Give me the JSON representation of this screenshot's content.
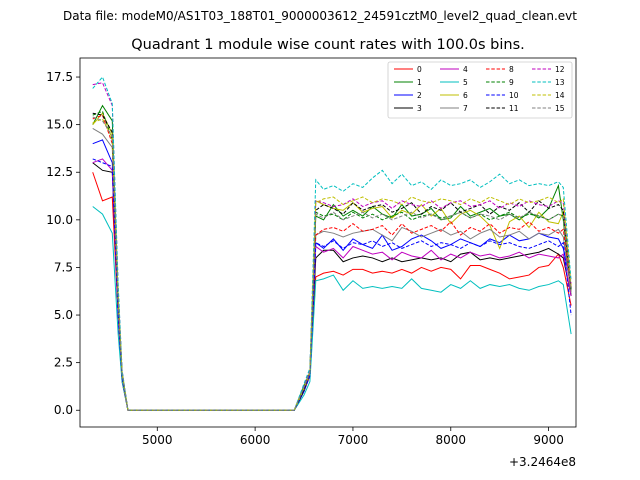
{
  "figure": {
    "suptitle": "Data file: modeM0/AS1T03_188T01_9000003612_24591cztM0_level2_quad_clean.evt"
  },
  "chart_data": {
    "type": "line",
    "title": "Quadrant 1 module wise count rates with 100.0s bins.",
    "xlabel": "",
    "ylabel": "",
    "x_offset_label": "+3.2464e8",
    "xlim": [
      4210,
      9280
    ],
    "ylim": [
      -0.88,
      18.5
    ],
    "xticks": [
      5000,
      6000,
      7000,
      8000,
      9000
    ],
    "xtick_labels": [
      "5000",
      "6000",
      "7000",
      "8000",
      "9000"
    ],
    "yticks": [
      0,
      2.5,
      5,
      7.5,
      10,
      12.5,
      15,
      17.5
    ],
    "ytick_labels": [
      "0.0",
      "2.5",
      "5.0",
      "7.5",
      "10.0",
      "12.5",
      "15.0",
      "17.5"
    ],
    "grid": false,
    "legend": {
      "position": "top-right",
      "columns": 4
    },
    "x": [
      4340,
      4440,
      4540,
      4600,
      4640,
      4700,
      4800,
      4900,
      5000,
      5100,
      5200,
      5300,
      5400,
      5500,
      5600,
      5700,
      5800,
      5900,
      6000,
      6100,
      6200,
      6300,
      6400,
      6500,
      6560,
      6620,
      6700,
      6800,
      6900,
      7000,
      7100,
      7200,
      7300,
      7400,
      7500,
      7600,
      7700,
      7800,
      7900,
      8000,
      8100,
      8200,
      8300,
      8400,
      8500,
      8600,
      8700,
      8800,
      8900,
      9000,
      9100,
      9150,
      9230
    ],
    "series": [
      {
        "name": "0",
        "color": "#ff0000",
        "dash": "solid",
        "values": [
          12.5,
          11.0,
          11.2,
          5.0,
          1.5,
          0,
          0,
          0,
          0,
          0,
          0,
          0,
          0,
          0,
          0,
          0,
          0,
          0,
          0,
          0,
          0,
          0,
          0,
          1.0,
          1.8,
          7.0,
          7.2,
          7.3,
          7.1,
          7.4,
          7.4,
          7.2,
          7.3,
          7.2,
          7.4,
          7.2,
          7.5,
          7.3,
          7.5,
          7.4,
          6.9,
          7.6,
          7.6,
          7.4,
          7.2,
          6.9,
          7.0,
          7.1,
          7.5,
          7.6,
          8.2,
          7.5,
          5.5
        ]
      },
      {
        "name": "1",
        "color": "#008000",
        "dash": "solid",
        "values": [
          15.0,
          16.0,
          15.2,
          6.0,
          2.0,
          0,
          0,
          0,
          0,
          0,
          0,
          0,
          0,
          0,
          0,
          0,
          0,
          0,
          0,
          0,
          0,
          0,
          0,
          1.3,
          2.0,
          10.2,
          10.0,
          10.8,
          10.2,
          10.5,
          10.2,
          10.7,
          10.3,
          10.1,
          10.8,
          10.2,
          10.3,
          10.6,
          10.0,
          10.1,
          10.7,
          10.2,
          10.4,
          10.6,
          10.2,
          10.3,
          10.0,
          10.4,
          10.1,
          10.6,
          11.8,
          10.0,
          6.0
        ]
      },
      {
        "name": "2",
        "color": "#0000ff",
        "dash": "solid",
        "values": [
          14.0,
          14.2,
          13.0,
          5.5,
          1.8,
          0,
          0,
          0,
          0,
          0,
          0,
          0,
          0,
          0,
          0,
          0,
          0,
          0,
          0,
          0,
          0,
          0,
          0,
          1.0,
          2.0,
          8.8,
          8.5,
          9.0,
          8.4,
          9.0,
          8.7,
          8.5,
          9.2,
          8.4,
          8.6,
          9.0,
          9.2,
          8.9,
          8.5,
          8.7,
          9.0,
          8.8,
          8.6,
          9.0,
          8.8,
          9.2,
          8.9,
          9.0,
          9.3,
          9.1,
          9.0,
          8.5,
          6.5
        ]
      },
      {
        "name": "3",
        "color": "#000000",
        "dash": "solid",
        "values": [
          13.0,
          12.6,
          12.5,
          5.0,
          1.7,
          0,
          0,
          0,
          0,
          0,
          0,
          0,
          0,
          0,
          0,
          0,
          0,
          0,
          0,
          0,
          0,
          0,
          0,
          1.0,
          1.9,
          8.0,
          8.4,
          8.4,
          7.8,
          8.0,
          8.1,
          8.0,
          7.8,
          8.0,
          7.8,
          7.9,
          8.0,
          7.9,
          8.0,
          7.8,
          8.2,
          8.3,
          7.9,
          8.0,
          7.9,
          8.0,
          8.1,
          8.2,
          8.3,
          8.5,
          8.2,
          8.0,
          6.0
        ]
      },
      {
        "name": "4",
        "color": "#bf00bf",
        "dash": "solid",
        "values": [
          13.0,
          13.2,
          12.6,
          5.0,
          1.7,
          0,
          0,
          0,
          0,
          0,
          0,
          0,
          0,
          0,
          0,
          0,
          0,
          0,
          0,
          0,
          0,
          0,
          0,
          1.1,
          1.9,
          8.6,
          8.3,
          8.5,
          8.0,
          8.6,
          8.4,
          8.2,
          8.3,
          7.9,
          8.3,
          8.1,
          8.0,
          8.4,
          7.9,
          8.2,
          8.0,
          8.3,
          8.1,
          8.2,
          8.0,
          8.1,
          8.3,
          8.0,
          8.2,
          8.1,
          8.0,
          8.2,
          6.0
        ]
      },
      {
        "name": "5",
        "color": "#00bfbf",
        "dash": "solid",
        "values": [
          10.7,
          10.3,
          9.3,
          4.0,
          1.5,
          0,
          0,
          0,
          0,
          0,
          0,
          0,
          0,
          0,
          0,
          0,
          0,
          0,
          0,
          0,
          0,
          0,
          0,
          0.8,
          1.5,
          6.8,
          6.9,
          7.1,
          6.3,
          6.8,
          6.4,
          6.5,
          6.4,
          6.5,
          6.4,
          6.9,
          6.4,
          6.3,
          6.2,
          6.6,
          6.4,
          6.8,
          6.4,
          6.6,
          6.5,
          6.6,
          6.4,
          6.3,
          6.5,
          6.6,
          6.8,
          6.6,
          4.0
        ]
      },
      {
        "name": "6",
        "color": "#bfbf00",
        "dash": "solid",
        "values": [
          15.0,
          15.6,
          14.5,
          6.0,
          2.0,
          0,
          0,
          0,
          0,
          0,
          0,
          0,
          0,
          0,
          0,
          0,
          0,
          0,
          0,
          0,
          0,
          0,
          0,
          1.2,
          2.0,
          11.0,
          10.8,
          10.6,
          10.5,
          10.9,
          10.4,
          10.6,
          10.7,
          10.1,
          10.5,
          10.3,
          10.8,
          10.2,
          10.6,
          9.8,
          10.3,
          10.5,
          10.2,
          9.7,
          8.5,
          9.9,
          10.2,
          9.6,
          10.4,
          9.9,
          9.8,
          10.4,
          6.5
        ]
      },
      {
        "name": "7",
        "color": "#808080",
        "dash": "solid",
        "values": [
          14.8,
          14.5,
          13.8,
          5.5,
          1.8,
          0,
          0,
          0,
          0,
          0,
          0,
          0,
          0,
          0,
          0,
          0,
          0,
          0,
          0,
          0,
          0,
          0,
          0,
          1.1,
          1.9,
          9.2,
          9.4,
          9.3,
          9.1,
          9.3,
          9.4,
          9.5,
          9.2,
          8.9,
          9.6,
          9.4,
          9.1,
          9.3,
          9.5,
          9.2,
          9.4,
          9.0,
          9.3,
          9.5,
          9.1,
          9.2,
          9.4,
          9.0,
          9.3,
          9.2,
          9.5,
          9.1,
          6.2
        ]
      },
      {
        "name": "8",
        "color": "#ff0000",
        "dash": "dashed",
        "values": [
          15.3,
          15.5,
          14.0,
          5.5,
          1.8,
          0,
          0,
          0,
          0,
          0,
          0,
          0,
          0,
          0,
          0,
          0,
          0,
          0,
          0,
          0,
          0,
          0,
          0,
          1.2,
          2.0,
          9.2,
          9.5,
          9.6,
          9.4,
          9.8,
          9.4,
          9.5,
          9.7,
          9.2,
          9.8,
          9.3,
          9.5,
          9.7,
          9.4,
          9.9,
          9.2,
          9.6,
          9.4,
          9.8,
          9.3,
          9.6,
          9.5,
          9.9,
          9.4,
          9.6,
          9.3,
          9.5,
          6.3
        ]
      },
      {
        "name": "9",
        "color": "#008000",
        "dash": "dashed",
        "values": [
          15.5,
          15.7,
          14.2,
          5.7,
          1.9,
          0,
          0,
          0,
          0,
          0,
          0,
          0,
          0,
          0,
          0,
          0,
          0,
          0,
          0,
          0,
          0,
          0,
          0,
          1.2,
          2.0,
          10.4,
          10.2,
          10.3,
          10.0,
          10.4,
          10.1,
          10.3,
          10.0,
          10.2,
          10.4,
          10.0,
          10.2,
          10.3,
          10.1,
          10.2,
          10.4,
          10.1,
          10.3,
          10.0,
          10.2,
          10.4,
          10.1,
          10.3,
          10.2,
          10.0,
          10.3,
          10.2,
          6.3
        ]
      },
      {
        "name": "10",
        "color": "#0000ff",
        "dash": "dashed",
        "values": [
          13.2,
          13.0,
          12.8,
          5.0,
          1.7,
          0,
          0,
          0,
          0,
          0,
          0,
          0,
          0,
          0,
          0,
          0,
          0,
          0,
          0,
          0,
          0,
          0,
          0,
          1.0,
          1.8,
          8.8,
          8.6,
          8.9,
          8.5,
          8.8,
          8.7,
          8.9,
          8.6,
          8.8,
          8.5,
          8.7,
          8.9,
          8.6,
          8.8,
          8.7,
          8.5,
          8.8,
          8.6,
          8.9,
          8.7,
          8.8,
          8.6,
          8.5,
          8.7,
          8.9,
          8.6,
          8.8,
          5.0
        ]
      },
      {
        "name": "11",
        "color": "#000000",
        "dash": "dashed",
        "values": [
          15.6,
          15.5,
          14.6,
          5.8,
          1.9,
          0,
          0,
          0,
          0,
          0,
          0,
          0,
          0,
          0,
          0,
          0,
          0,
          0,
          0,
          0,
          0,
          0,
          0,
          1.1,
          2.0,
          10.5,
          10.8,
          10.6,
          10.3,
          10.9,
          10.5,
          10.7,
          10.8,
          10.4,
          10.6,
          10.9,
          10.3,
          10.7,
          10.5,
          10.9,
          10.4,
          10.6,
          10.8,
          10.3,
          10.7,
          10.5,
          10.9,
          10.4,
          11.0,
          10.6,
          10.8,
          10.5,
          6.4
        ]
      },
      {
        "name": "12",
        "color": "#bf00bf",
        "dash": "dashed",
        "values": [
          17.1,
          17.2,
          16.0,
          6.5,
          2.1,
          0,
          0,
          0,
          0,
          0,
          0,
          0,
          0,
          0,
          0,
          0,
          0,
          0,
          0,
          0,
          0,
          0,
          0,
          1.3,
          2.1,
          11.0,
          10.9,
          10.7,
          10.8,
          11.1,
          10.7,
          10.9,
          11.0,
          10.6,
          11.0,
          10.8,
          10.7,
          11.0,
          10.6,
          10.9,
          11.0,
          10.7,
          10.8,
          11.0,
          10.6,
          10.9,
          10.7,
          11.0,
          10.8,
          10.7,
          11.0,
          10.9,
          6.6
        ]
      },
      {
        "name": "13",
        "color": "#00bfbf",
        "dash": "dashed",
        "values": [
          16.9,
          17.5,
          16.1,
          6.6,
          2.1,
          0,
          0,
          0,
          0,
          0,
          0,
          0,
          0,
          0,
          0,
          0,
          0,
          0,
          0,
          0,
          0,
          0,
          0,
          1.4,
          2.2,
          12.1,
          11.6,
          11.8,
          11.5,
          11.9,
          11.7,
          12.2,
          12.6,
          11.9,
          12.4,
          11.8,
          12.0,
          11.6,
          12.1,
          11.8,
          11.9,
          12.1,
          11.7,
          12.0,
          12.4,
          11.9,
          12.1,
          11.8,
          11.9,
          11.8,
          12.0,
          11.7,
          6.8
        ]
      },
      {
        "name": "14",
        "color": "#bfbf00",
        "dash": "dashed",
        "values": [
          15.1,
          15.3,
          14.3,
          5.8,
          1.9,
          0,
          0,
          0,
          0,
          0,
          0,
          0,
          0,
          0,
          0,
          0,
          0,
          0,
          0,
          0,
          0,
          0,
          0,
          1.2,
          2.0,
          10.9,
          11.1,
          11.2,
          10.8,
          11.0,
          11.2,
          10.9,
          11.1,
          11.0,
          10.8,
          11.2,
          11.0,
          10.9,
          11.1,
          11.0,
          10.8,
          11.1,
          10.9,
          11.2,
          11.0,
          10.8,
          11.1,
          10.9,
          11.0,
          11.2,
          10.9,
          11.1,
          6.5
        ]
      },
      {
        "name": "15",
        "color": "#808080",
        "dash": "dashed",
        "values": [
          15.4,
          15.2,
          14.4,
          5.8,
          1.9,
          0,
          0,
          0,
          0,
          0,
          0,
          0,
          0,
          0,
          0,
          0,
          0,
          0,
          0,
          0,
          0,
          0,
          0,
          1.2,
          2.0,
          10.3,
          10.1,
          10.4,
          10.0,
          10.2,
          10.4,
          10.1,
          10.3,
          10.0,
          10.2,
          10.4,
          10.1,
          10.3,
          10.0,
          10.2,
          10.4,
          10.1,
          10.3,
          10.2,
          10.0,
          10.3,
          10.1,
          10.4,
          10.2,
          10.0,
          10.3,
          10.2,
          6.3
        ]
      }
    ]
  }
}
